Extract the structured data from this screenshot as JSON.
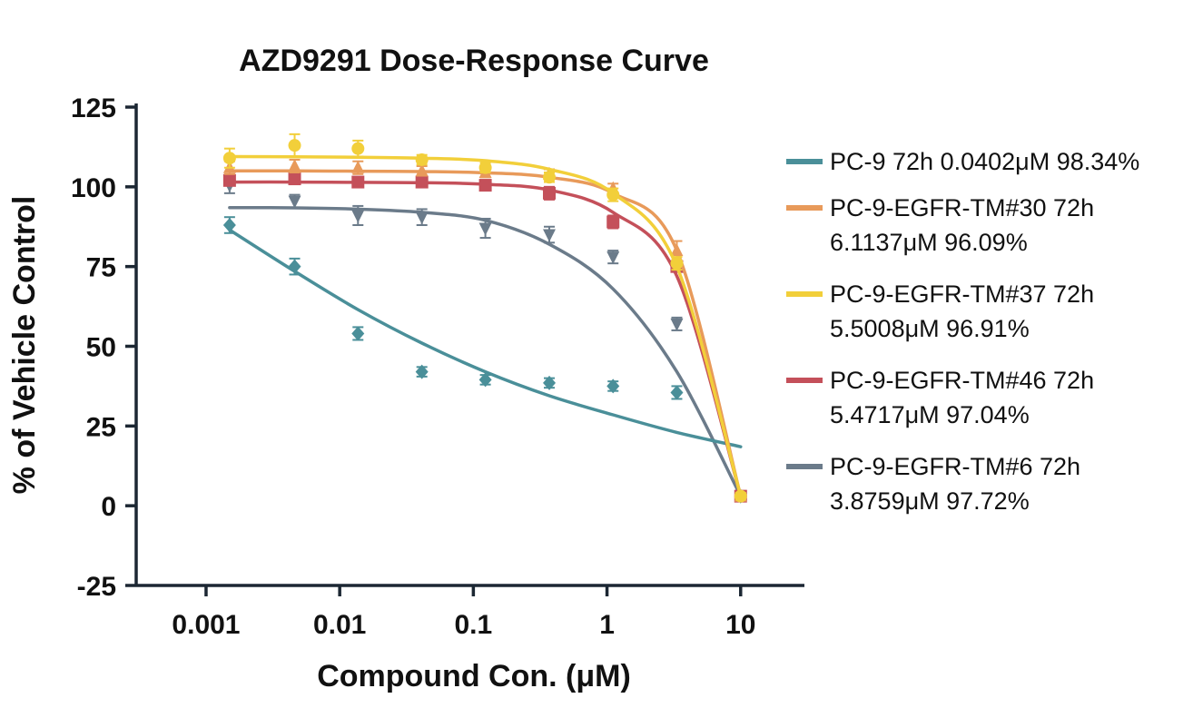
{
  "chart_data": {
    "type": "scatter",
    "title": "AZD9291 Dose-Response Curve",
    "xlabel": "Compound Con. (μM)",
    "ylabel": "% of Vehicle Control",
    "xscale": "log",
    "xlim": [
      0.0003,
      30
    ],
    "ylim": [
      -25,
      125
    ],
    "xticks": [
      {
        "value": 0.001,
        "label": "0.001"
      },
      {
        "value": 0.01,
        "label": "0.01"
      },
      {
        "value": 0.1,
        "label": "0.1"
      },
      {
        "value": 1,
        "label": "1"
      },
      {
        "value": 10,
        "label": "10"
      }
    ],
    "yticks": [
      {
        "value": 125,
        "label": "125"
      },
      {
        "value": 100,
        "label": "100"
      },
      {
        "value": 75,
        "label": "75"
      },
      {
        "value": 50,
        "label": "50"
      },
      {
        "value": 25,
        "label": "25"
      },
      {
        "value": 0,
        "label": "0"
      },
      {
        "value": -25,
        "label": "-25"
      }
    ],
    "legend_position": "right",
    "x": [
      0.0015,
      0.0046,
      0.0137,
      0.0412,
      0.123,
      0.37,
      1.11,
      3.33,
      10
    ],
    "series": [
      {
        "name": "PC-9-EGFR-TM#6",
        "legend_lines": [
          "PC-9-EGFR-TM#6 72h",
          "3.8759μM 97.72%"
        ],
        "color": "#6b7b8a",
        "marker": "triangle-down",
        "values": [
          100.5,
          95.5,
          91,
          90.5,
          87,
          85,
          78,
          57,
          3
        ],
        "errors": [
          2.5,
          2,
          3,
          2.5,
          3,
          2.5,
          2,
          2,
          1
        ],
        "curve": [
          93.5,
          93.4,
          93.0,
          92.0,
          89.5,
          82.0,
          68.0,
          42.0,
          3.0
        ]
      },
      {
        "name": "PC-9",
        "legend_lines": [
          "PC-9 72h 0.0402μM 98.34%"
        ],
        "color": "#4a8f99",
        "marker": "diamond",
        "values": [
          88,
          75,
          54,
          42,
          39.5,
          38.5,
          37.5,
          35.5,
          3
        ],
        "errors": [
          2.5,
          2.5,
          2,
          1.5,
          1.5,
          1.5,
          1.5,
          2,
          1
        ],
        "curve": [
          86.5,
          73.5,
          61.5,
          51.0,
          42.0,
          34.5,
          28.5,
          23.0,
          18.5
        ]
      },
      {
        "name": "PC-9-EGFR-TM#46",
        "legend_lines": [
          "PC-9-EGFR-TM#46 72h",
          "5.4717μM 97.04%"
        ],
        "color": "#c4505a",
        "marker": "square",
        "values": [
          102,
          102.5,
          101.5,
          101.5,
          100.5,
          98,
          89,
          75,
          3
        ],
        "errors": [
          1.5,
          1.5,
          1.5,
          1.5,
          1.5,
          2,
          2,
          1.5,
          1
        ],
        "curve": [
          101.5,
          101.5,
          101.4,
          101.3,
          100.8,
          99.0,
          92.0,
          72.0,
          3.0
        ]
      },
      {
        "name": "PC-9-EGFR-TM#30",
        "legend_lines": [
          "PC-9-EGFR-TM#30 72h",
          "6.1137μM 96.09%"
        ],
        "color": "#e89a5a",
        "marker": "triangle-up",
        "values": [
          106,
          106.5,
          106,
          105,
          104.5,
          104,
          99.5,
          80,
          3
        ],
        "errors": [
          2,
          2,
          2,
          1.5,
          1.5,
          1.5,
          1.5,
          3,
          1
        ],
        "curve": [
          105.0,
          105.0,
          104.9,
          104.8,
          104.4,
          103.0,
          98.0,
          80.0,
          3.0
        ]
      },
      {
        "name": "PC-9-EGFR-TM#37",
        "legend_lines": [
          "PC-9-EGFR-TM#37 72h",
          "5.5008μM 96.91%"
        ],
        "color": "#f2cf3a",
        "marker": "circle",
        "values": [
          109,
          113,
          112,
          108.5,
          106,
          103,
          97.5,
          76,
          3
        ],
        "errors": [
          3,
          3.5,
          2.5,
          1.5,
          1.5,
          1.5,
          2,
          2,
          1
        ],
        "curve": [
          109.5,
          109.4,
          109.3,
          109.0,
          108.2,
          105.5,
          98.0,
          75.0,
          3.0
        ]
      }
    ],
    "legend_order": [
      "PC-9",
      "PC-9-EGFR-TM#30",
      "PC-9-EGFR-TM#37",
      "PC-9-EGFR-TM#46",
      "PC-9-EGFR-TM#6"
    ]
  }
}
